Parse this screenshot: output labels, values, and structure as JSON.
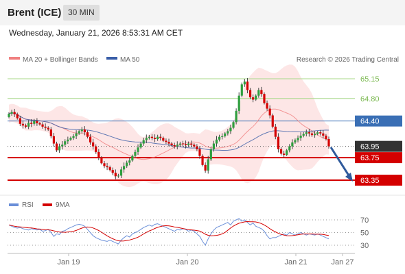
{
  "header": {
    "title": "Brent (ICE)",
    "timeframe": "30 MIN"
  },
  "timestamp": "Wednesday, January 21, 2026 8:53:31 AM CET",
  "legend": {
    "ma20": "MA 20 + Bollinger Bands",
    "ma50": "MA 50",
    "copyright": "Research © 2026 Trading Central",
    "rsi": "RSI",
    "rsi_ma": "9MA"
  },
  "colors": {
    "ma20": "#f08080",
    "ma50": "#3a5ea8",
    "band": "#fde0e0",
    "up": "#2e9e3e",
    "down": "#d40000",
    "resistance": "#a8d88a",
    "support": "#d40000",
    "pivot": "#3a6fb5",
    "arrow": "#2f5a9c",
    "current": "#333333",
    "rsi": "#6a8fd8",
    "rsi_ma": "#d40000"
  },
  "chart_data": {
    "type": "candlestick",
    "y_range": [
      63.0,
      65.4
    ],
    "x_ticks": [
      "Jan 19",
      "Jan 20",
      "Jan 21",
      "Jan 27"
    ],
    "levels": [
      {
        "value": "65.15",
        "kind": "resistance"
      },
      {
        "value": "64.80",
        "kind": "resistance"
      },
      {
        "value": "64.40",
        "kind": "pivot"
      },
      {
        "value": "63.95",
        "kind": "current"
      },
      {
        "value": "63.75",
        "kind": "support"
      },
      {
        "value": "63.35",
        "kind": "support"
      }
    ],
    "close": [
      64.53,
      64.56,
      64.52,
      64.45,
      64.35,
      64.32,
      64.3,
      64.37,
      64.35,
      64.4,
      64.36,
      64.34,
      64.3,
      64.28,
      64.25,
      64.13,
      64.0,
      63.88,
      63.95,
      63.98,
      64.04,
      64.07,
      64.1,
      64.13,
      64.18,
      64.22,
      64.25,
      64.2,
      64.12,
      64.02,
      63.95,
      63.85,
      63.75,
      63.65,
      63.6,
      63.58,
      63.53,
      63.48,
      63.42,
      63.43,
      63.54,
      63.6,
      63.66,
      63.7,
      63.78,
      63.85,
      63.93,
      64.0,
      64.06,
      64.1,
      64.12,
      64.1,
      64.08,
      64.12,
      64.1,
      64.05,
      64.03,
      64.0,
      63.97,
      63.95,
      63.98,
      64.0,
      63.99,
      63.97,
      64.0,
      63.98,
      63.95,
      63.9,
      63.78,
      63.62,
      63.52,
      63.72,
      63.9,
      64.0,
      64.07,
      64.12,
      64.13,
      64.18,
      64.22,
      64.28,
      64.38,
      64.58,
      64.85,
      65.05,
      65.1,
      64.95,
      64.82,
      64.78,
      64.85,
      64.95,
      64.88,
      64.72,
      64.62,
      64.5,
      64.3,
      64.12,
      63.9,
      63.82,
      63.8,
      63.88,
      63.95,
      64.02,
      64.06,
      64.1,
      64.14,
      64.17,
      64.2,
      64.18,
      64.15,
      64.17,
      64.2,
      64.18,
      64.14,
      64.08,
      63.95
    ],
    "rsi": {
      "levels": [
        70,
        50,
        30
      ],
      "values": [
        62,
        60,
        58,
        57,
        58,
        56,
        55,
        54,
        56,
        55,
        54,
        55,
        52,
        53,
        55,
        50,
        44,
        48,
        47,
        52,
        53,
        56,
        58,
        60,
        62,
        63,
        62,
        60,
        55,
        50,
        45,
        42,
        40,
        38,
        37,
        36,
        38,
        36,
        34,
        32,
        38,
        42,
        45,
        43,
        48,
        50,
        52,
        55,
        58,
        60,
        62,
        60,
        63,
        64,
        62,
        60,
        58,
        56,
        54,
        52,
        55,
        54,
        56,
        55,
        52,
        54,
        52,
        48,
        44,
        36,
        30,
        40,
        48,
        54,
        58,
        60,
        62,
        64,
        66,
        62,
        68,
        70,
        72,
        68,
        70,
        66,
        62,
        65,
        60,
        58,
        56,
        52,
        45,
        40,
        42,
        42,
        44,
        46,
        48,
        46,
        50,
        48,
        46,
        48,
        50,
        48,
        46,
        48,
        47,
        46,
        48,
        46,
        44,
        42,
        40
      ]
    }
  }
}
